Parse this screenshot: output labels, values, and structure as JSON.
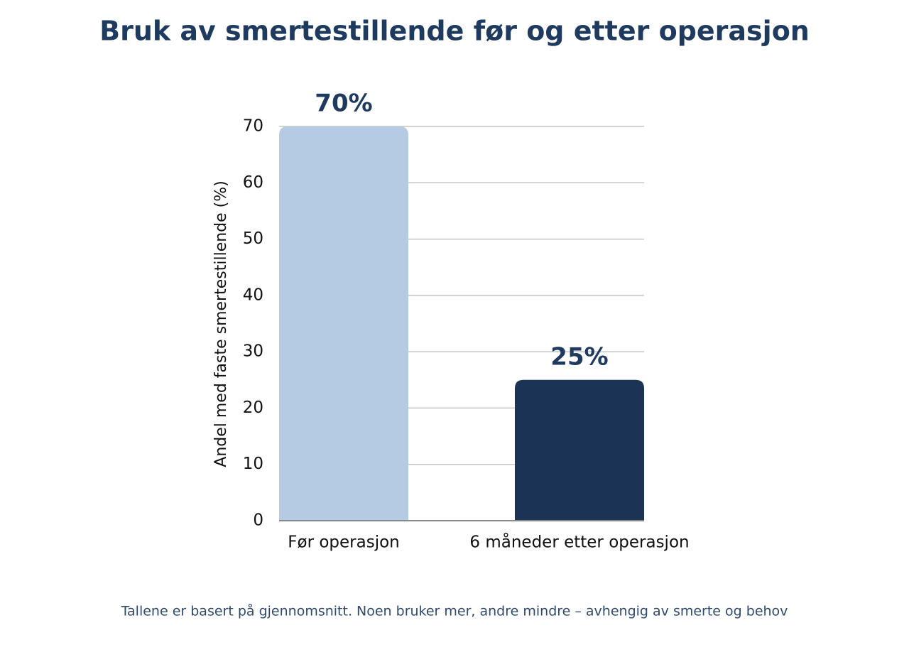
{
  "chart_data": {
    "type": "bar",
    "title": "Bruk av smertestillende før og etter operasjon",
    "y_label": "Andel med faste smertestillende (%)",
    "categories": [
      "Før operasjon",
      "6 måneder etter operasjon"
    ],
    "values": [
      70,
      25
    ],
    "value_labels": [
      "70%",
      "25%"
    ],
    "colors": [
      "#b5cae3",
      "#1b3354"
    ],
    "ylim": [
      0,
      70
    ],
    "yticks": [
      0,
      10,
      20,
      30,
      40,
      50,
      60,
      70
    ],
    "grid": true,
    "footnote": "Tallene er basert på gjennomsnitt. Noen bruker mer, andre mindre – avhengig av smerte og behov"
  }
}
